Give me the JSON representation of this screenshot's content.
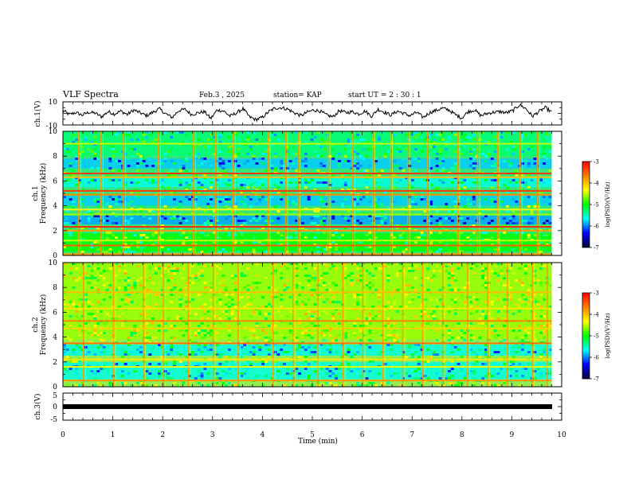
{
  "header": {
    "title": "VLF Spectra",
    "date": "Feb.3 , 2025",
    "station": "station= KAP",
    "start_ut": "start UT =  2 : 30 : 1"
  },
  "colorbar": {
    "label": "log(PSD)(V²/Hz)",
    "ticks": [
      "-3",
      "-4",
      "-5",
      "-6",
      "-7"
    ],
    "stops": [
      "#ff0000",
      "#ff7f00",
      "#ffff00",
      "#00ff00",
      "#00ffff",
      "#0000ff",
      "#000033"
    ]
  },
  "chart_data": [
    {
      "type": "line",
      "name": "ch1-waveform",
      "ylabel": "ch.1(V)",
      "xlim": [
        0,
        10
      ],
      "ylim": [
        -10,
        10
      ],
      "y_ticks": [
        "10",
        "-10"
      ],
      "x_end": 9.8,
      "y_values": [
        2.5,
        -1.0,
        0.8,
        -1.5,
        1.0,
        0.3,
        -3.0,
        1.5,
        -0.5,
        2.0,
        -1.0,
        3.0,
        0.5,
        -2.0,
        1.0,
        4.0,
        -0.5,
        -3.5,
        2.5,
        3.5,
        -1.0,
        0.5,
        1.5,
        -4.5,
        3.0,
        2.0,
        -2.5,
        0.5,
        4.0,
        -3.0,
        -5.5,
        -3.5,
        1.5,
        4.5,
        5.0,
        3.5,
        0.5,
        -2.0,
        1.0,
        3.0,
        2.0,
        -1.5,
        -3.0,
        2.5,
        0.5,
        1.5,
        -0.5,
        2.0,
        -2.5,
        3.5,
        1.0,
        -1.5,
        2.0,
        0.0,
        -2.0,
        1.0,
        -3.5,
        0.5,
        2.5,
        4.5,
        3.0,
        -1.0,
        -4.0,
        1.5,
        3.0,
        -2.0,
        0.0,
        1.0,
        1.5,
        0.5,
        2.5,
        7.5,
        4.0,
        -2.5,
        1.5,
        5.0,
        1.0
      ]
    },
    {
      "type": "heatmap",
      "name": "ch1-spectrogram",
      "ylabel": "ch.1\nFrequency (kHz)",
      "xlim": [
        0,
        10
      ],
      "ylim": [
        0,
        10
      ],
      "x_end": 9.8,
      "y_ticks": [
        "10",
        "8",
        "6",
        "4",
        "2",
        "0"
      ],
      "background_log_psd": -5.0,
      "freq_bands": [
        {
          "from_khz": 8.0,
          "to_khz": 10.0,
          "log_psd": -5.3
        },
        {
          "from_khz": 7.0,
          "to_khz": 7.8,
          "log_psd": -5.8
        },
        {
          "from_khz": 5.5,
          "to_khz": 6.4,
          "log_psd": -5.6
        },
        {
          "from_khz": 4.0,
          "to_khz": 4.8,
          "log_psd": -5.8
        },
        {
          "from_khz": 2.5,
          "to_khz": 3.2,
          "log_psd": -5.9
        },
        {
          "from_khz": 0.3,
          "to_khz": 1.8,
          "log_psd": -5.0
        }
      ],
      "freq_lines": [
        {
          "khz": 9.0,
          "log_psd": -4.5
        },
        {
          "khz": 6.6,
          "log_psd": -3.3
        },
        {
          "khz": 6.3,
          "log_psd": -4.0
        },
        {
          "khz": 5.2,
          "log_psd": -3.3
        },
        {
          "khz": 4.9,
          "log_psd": -3.7
        },
        {
          "khz": 3.7,
          "log_psd": -4.3
        },
        {
          "khz": 3.3,
          "log_psd": -4.6
        },
        {
          "khz": 2.3,
          "log_psd": -3.2
        },
        {
          "khz": 2.0,
          "log_psd": -3.8
        },
        {
          "khz": 1.2,
          "log_psd": -4.5
        },
        {
          "khz": 0.8,
          "log_psd": -3.5
        },
        {
          "khz": 0.1,
          "log_psd": -3.8
        }
      ],
      "time_bursts_min": [
        0.3,
        0.75,
        1.2,
        1.9,
        2.6,
        3.05,
        3.4,
        4.1,
        4.45,
        4.7,
        5.3,
        5.8,
        6.2,
        6.55,
        6.9,
        7.3,
        7.9,
        8.3,
        8.7,
        9.15,
        9.5
      ]
    },
    {
      "type": "heatmap",
      "name": "ch2-spectrogram",
      "ylabel": "ch.2\nFrequency (kHz)",
      "xlim": [
        0,
        10
      ],
      "ylim": [
        0,
        10
      ],
      "x_end": 9.8,
      "y_ticks": [
        "10",
        "8",
        "6",
        "4",
        "2",
        "0"
      ],
      "background_log_psd": -4.8,
      "freq_bands": [
        {
          "from_khz": 3.8,
          "to_khz": 10.0,
          "log_psd": -4.6
        },
        {
          "from_khz": 2.5,
          "to_khz": 3.4,
          "log_psd": -5.6
        },
        {
          "from_khz": 0.6,
          "to_khz": 2.0,
          "log_psd": -5.6
        }
      ],
      "freq_lines": [
        {
          "khz": 7.6,
          "log_psd": -4.0
        },
        {
          "khz": 6.3,
          "log_psd": -4.2
        },
        {
          "khz": 5.3,
          "log_psd": -3.7
        },
        {
          "khz": 4.7,
          "log_psd": -4.1
        },
        {
          "khz": 3.5,
          "log_psd": -3.6
        },
        {
          "khz": 2.2,
          "log_psd": -4.2
        },
        {
          "khz": 1.6,
          "log_psd": -4.4
        },
        {
          "khz": 0.5,
          "log_psd": -3.8
        }
      ],
      "time_bursts_min": [
        0.4,
        1.0,
        1.6,
        2.0,
        2.5,
        3.0,
        3.5,
        4.2,
        4.6,
        5.1,
        5.6,
        6.0,
        6.4,
        6.8,
        7.2,
        7.6,
        8.1,
        8.5,
        8.9,
        9.4,
        9.7
      ]
    },
    {
      "type": "line",
      "name": "ch3-waveform",
      "ylabel": "ch.3(V)",
      "xlim": [
        0,
        10
      ],
      "ylim": [
        -5,
        5
      ],
      "y_ticks": [
        "5",
        "0",
        "-5"
      ],
      "x_end": 9.8,
      "y_values": [
        0,
        0
      ]
    }
  ],
  "x_axis": {
    "label": "Time (min)",
    "ticks": [
      "0",
      "1",
      "2",
      "3",
      "4",
      "5",
      "6",
      "7",
      "8",
      "9",
      "10"
    ]
  }
}
